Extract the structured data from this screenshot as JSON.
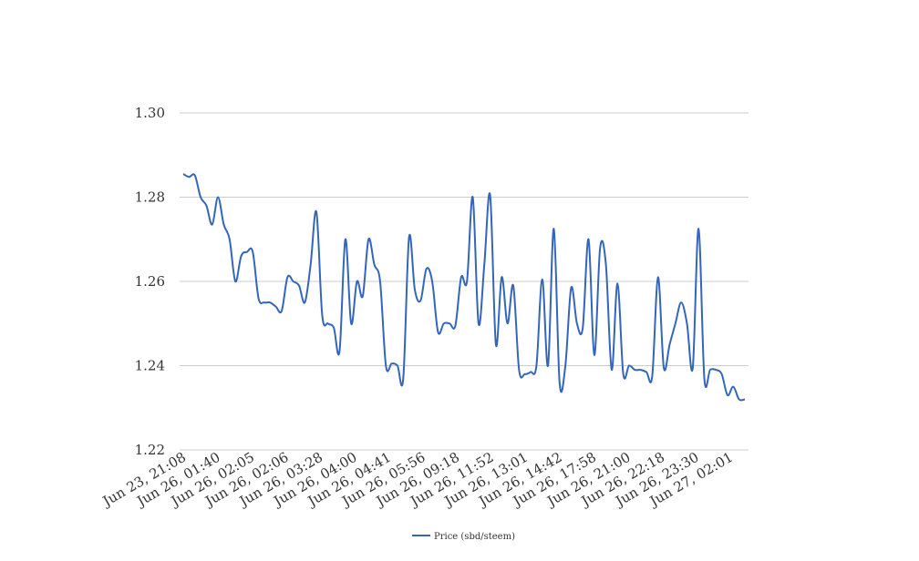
{
  "chart_data": {
    "type": "line",
    "title": "",
    "xlabel": "",
    "ylabel": "",
    "ylim": [
      1.22,
      1.3
    ],
    "y_ticks": [
      "1.22",
      "1.24",
      "1.26",
      "1.28",
      "1.30"
    ],
    "grid": "horizontal",
    "legend_position": "bottom",
    "x_tick_labels": [
      "Jun 23, 21:08",
      "Jun 26, 01:40",
      "Jun 26, 02:05",
      "Jun 26, 02:06",
      "Jun 26, 03:28",
      "Jun 26, 04:00",
      "Jun 26, 04:41",
      "Jun 26, 05:56",
      "Jun 26, 09:18",
      "Jun 26, 11:52",
      "Jun 26, 13:01",
      "Jun 26, 14:42",
      "Jun 26, 17:58",
      "Jun 26, 21:00",
      "Jun 26, 22:18",
      "Jun 26, 23:30",
      "Jun 27, 02:01"
    ],
    "series": [
      {
        "name": "Price (sbd/steem)",
        "color": "#3366bb",
        "values": [
          1.2855,
          1.2848,
          1.2852,
          1.28,
          1.278,
          1.2735,
          1.28,
          1.2735,
          1.27,
          1.26,
          1.266,
          1.267,
          1.267,
          1.256,
          1.255,
          1.255,
          1.254,
          1.253,
          1.261,
          1.26,
          1.259,
          1.255,
          1.264,
          1.2765,
          1.252,
          1.25,
          1.249,
          1.2435,
          1.27,
          1.25,
          1.26,
          1.2565,
          1.27,
          1.264,
          1.26,
          1.24,
          1.2405,
          1.24,
          1.237,
          1.2705,
          1.258,
          1.2555,
          1.263,
          1.26,
          1.248,
          1.25,
          1.25,
          1.2495,
          1.261,
          1.26,
          1.28,
          1.25,
          1.264,
          1.2805,
          1.245,
          1.261,
          1.25,
          1.259,
          1.239,
          1.238,
          1.2385,
          1.24,
          1.2605,
          1.24,
          1.2725,
          1.236,
          1.24,
          1.2585,
          1.25,
          1.249,
          1.27,
          1.2425,
          1.268,
          1.264,
          1.239,
          1.2595,
          1.238,
          1.24,
          1.239,
          1.239,
          1.2385,
          1.2375,
          1.261,
          1.2395,
          1.245,
          1.25,
          1.255,
          1.25,
          1.2395,
          1.2725,
          1.237,
          1.239,
          1.239,
          1.238,
          1.233,
          1.235,
          1.232,
          1.232
        ]
      }
    ]
  }
}
